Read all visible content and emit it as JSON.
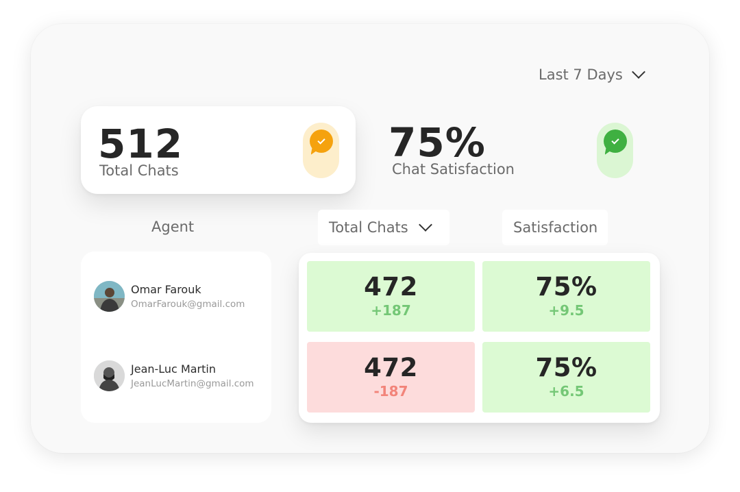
{
  "filter": {
    "label": "Last 7 Days",
    "icon": "chevron-down-icon"
  },
  "stats": [
    {
      "value": "512",
      "label": "Total Chats",
      "icon": "chat-check-icon",
      "color": "#f5a20e"
    },
    {
      "value": "75%",
      "label": "Chat Satisfaction",
      "icon": "chat-check-icon",
      "color": "#3fb041"
    }
  ],
  "table": {
    "headers": {
      "agent": "Agent",
      "total_chats": "Total Chats",
      "satisfaction": "Satisfaction"
    },
    "rows": [
      {
        "name": "Omar Farouk",
        "email": "OmarFarouk@gmail.com",
        "chats": "472",
        "chats_delta": "+187",
        "satisfaction": "75%",
        "satisfaction_delta": "+9.5"
      },
      {
        "name": "Jean-Luc Martin",
        "email": "JeanLucMartin@gmail.com",
        "chats": "472",
        "chats_delta": "-187",
        "satisfaction": "75%",
        "satisfaction_delta": "+6.5"
      }
    ]
  },
  "colors": {
    "positive_bg": "#dcfad3",
    "negative_bg": "#fddcdc",
    "positive_text": "#74c776",
    "negative_text": "#f2847a"
  }
}
